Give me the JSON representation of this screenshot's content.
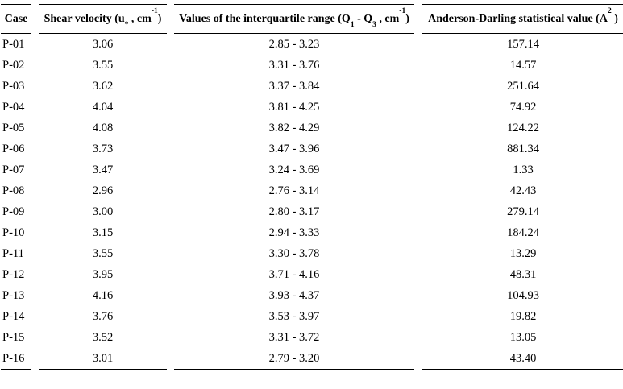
{
  "table": {
    "header": {
      "case": "Case",
      "shear": {
        "t1": "Shear velocity (u",
        "sub1": "*",
        "t2": " , cm",
        "sup1": "-1",
        "t3": ")"
      },
      "iqr": {
        "t1": "Values of the interquartile range (Q",
        "sub1": "1",
        "t2": " - Q",
        "sub2": "3",
        "t3": " , cm",
        "sup1": "-1",
        "t4": ")"
      },
      "ad": {
        "t1": "Anderson-Darling statistical value (A",
        "sup1": "2",
        "t2": " )"
      }
    },
    "rows": [
      {
        "case": "P-01",
        "shear": "3.06",
        "iqr": "2.85 - 3.23",
        "ad": "157.14"
      },
      {
        "case": "P-02",
        "shear": "3.55",
        "iqr": "3.31 - 3.76",
        "ad": "14.57"
      },
      {
        "case": "P-03",
        "shear": "3.62",
        "iqr": "3.37 - 3.84",
        "ad": "251.64"
      },
      {
        "case": "P-04",
        "shear": "4.04",
        "iqr": "3.81 - 4.25",
        "ad": "74.92"
      },
      {
        "case": "P-05",
        "shear": "4.08",
        "iqr": "3.82 - 4.29",
        "ad": "124.22"
      },
      {
        "case": "P-06",
        "shear": "3.73",
        "iqr": "3.47 - 3.96",
        "ad": "881.34"
      },
      {
        "case": "P-07",
        "shear": "3.47",
        "iqr": "3.24 - 3.69",
        "ad": "1.33"
      },
      {
        "case": "P-08",
        "shear": "2.96",
        "iqr": "2.76 - 3.14",
        "ad": "42.43"
      },
      {
        "case": "P-09",
        "shear": "3.00",
        "iqr": "2.80 - 3.17",
        "ad": "279.14"
      },
      {
        "case": "P-10",
        "shear": "3.15",
        "iqr": "2.94 - 3.33",
        "ad": "184.24"
      },
      {
        "case": "P-11",
        "shear": "3.55",
        "iqr": "3.30 - 3.78",
        "ad": "13.29"
      },
      {
        "case": "P-12",
        "shear": "3.95",
        "iqr": "3.71 - 4.16",
        "ad": "48.31"
      },
      {
        "case": "P-13",
        "shear": "4.16",
        "iqr": "3.93 - 4.37",
        "ad": "104.93"
      },
      {
        "case": "P-14",
        "shear": "3.76",
        "iqr": "3.53 - 3.97",
        "ad": "19.82"
      },
      {
        "case": "P-15",
        "shear": "3.52",
        "iqr": "3.31 - 3.72",
        "ad": "13.05"
      },
      {
        "case": "P-16",
        "shear": "3.01",
        "iqr": "2.79 - 3.20",
        "ad": "43.40"
      }
    ]
  },
  "colors": {
    "text": "#000000",
    "background": "#ffffff",
    "rule": "#000000"
  }
}
